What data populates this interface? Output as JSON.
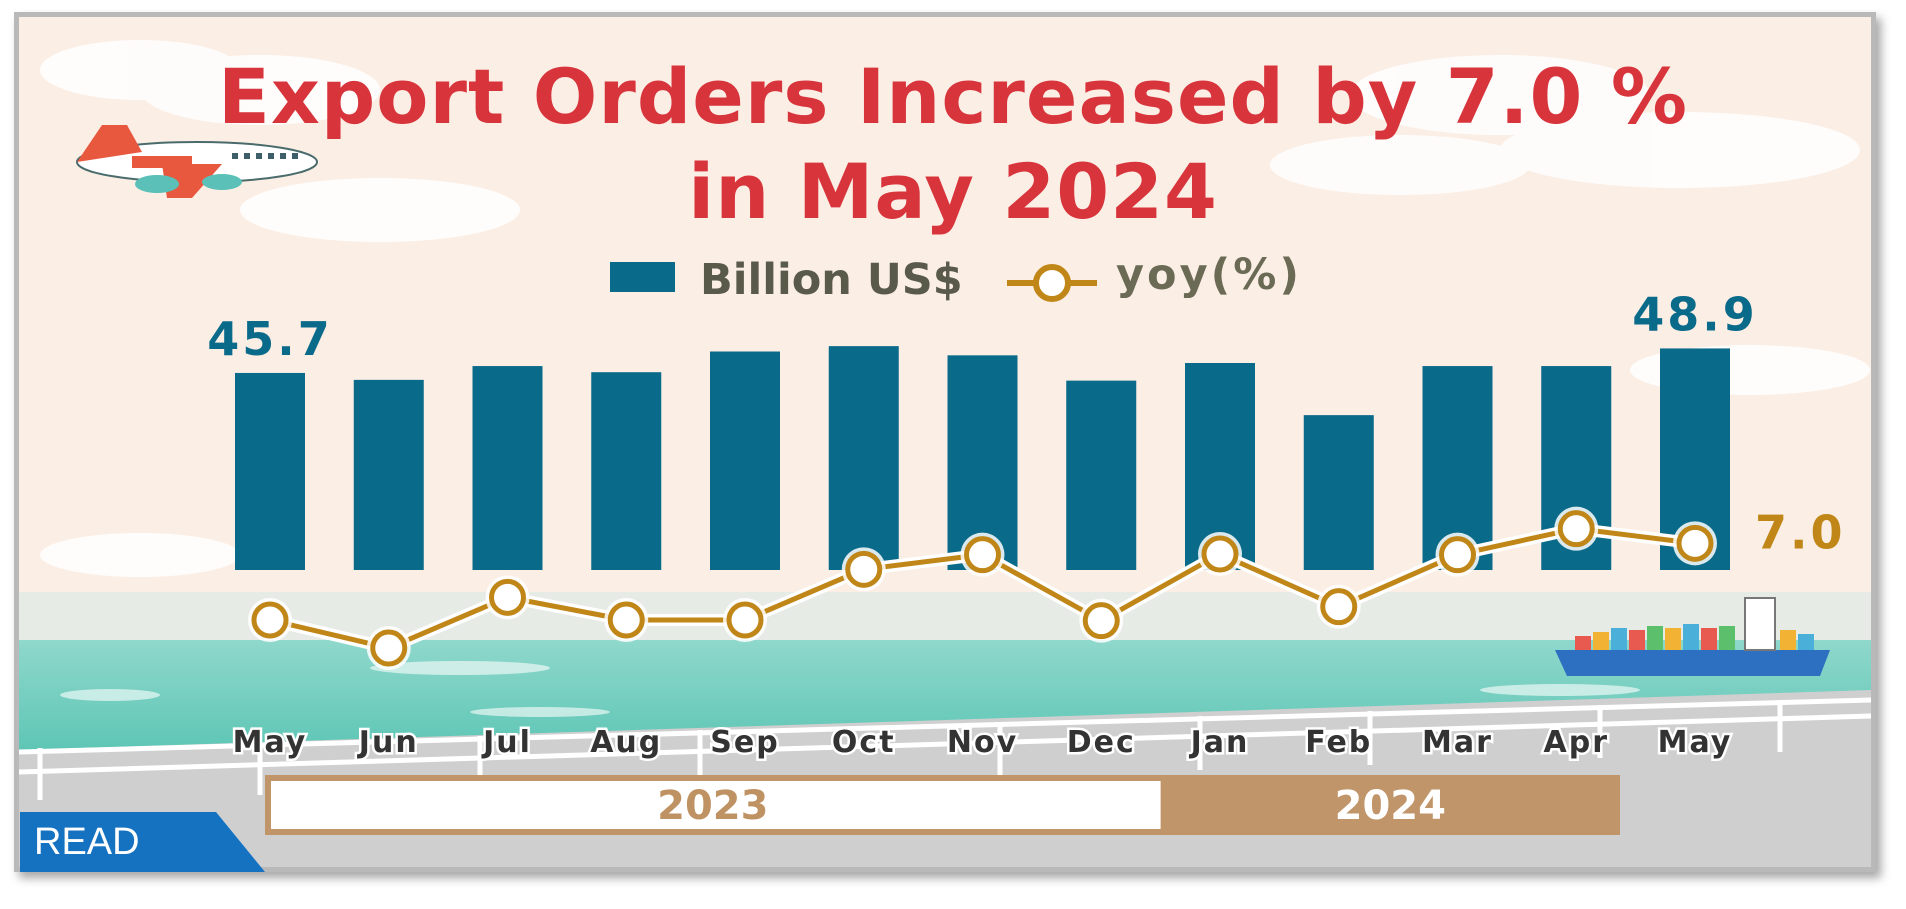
{
  "title_line1": "Export Orders Increased by 7.0 %",
  "title_line2": "in May 2024",
  "read_label": "READ",
  "colors": {
    "bar": "#0a6a8a",
    "line": "#c08718",
    "title": "#d8343c",
    "year_2023_text": "#bf9264",
    "year_2024_bg": "#c1956a",
    "read_badge": "#1572c1"
  },
  "icons": [
    "airplane-icon",
    "container-ship-icon"
  ],
  "chart_data": {
    "type": "bar",
    "categories": [
      "May",
      "Jun",
      "Jul",
      "Aug",
      "Sep",
      "Oct",
      "Nov",
      "Dec",
      "Jan",
      "Feb",
      "Mar",
      "Apr",
      "May"
    ],
    "year_groups": [
      {
        "label": "2023",
        "months": 8
      },
      {
        "label": "2024",
        "months": 5
      }
    ],
    "series": [
      {
        "name": "Billion US$",
        "kind": "bar",
        "values": [
          45.7,
          44.8,
          46.6,
          45.8,
          48.5,
          49.2,
          48.0,
          44.7,
          47.0,
          40.2,
          46.6,
          46.6,
          48.9
        ]
      },
      {
        "name": "yoy(%)",
        "kind": "line",
        "values": [
          -4.5,
          -8.7,
          -1.1,
          -4.5,
          -4.5,
          3.1,
          5.3,
          -4.6,
          5.4,
          -2.5,
          5.3,
          9.2,
          7.0
        ]
      }
    ],
    "data_labels": [
      {
        "series": "Billion US$",
        "index": 0,
        "text": "45.7"
      },
      {
        "series": "Billion US$",
        "index": 12,
        "text": "48.9"
      },
      {
        "series": "yoy(%)",
        "index": 12,
        "text": "7.0"
      }
    ],
    "bar_axis_min": 20,
    "bar_axis_max": 50,
    "line_axis_min": -15,
    "line_axis_max": 15,
    "grid": false,
    "legend_position": "top-center"
  }
}
